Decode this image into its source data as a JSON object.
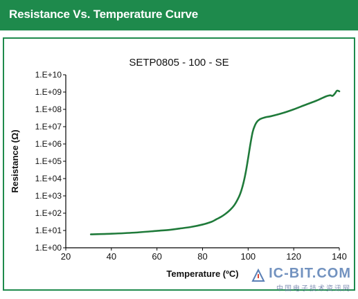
{
  "header": {
    "title": "Resistance Vs. Temperature Curve"
  },
  "colors": {
    "header_bg": "#1e8a4c",
    "line": "#1f7a3a",
    "axis": "#000000",
    "grid": "#d9d9d9"
  },
  "chart_data": {
    "type": "line",
    "title": "SETP0805 - 100 - SE",
    "xlabel": "Temperature (ºC)",
    "ylabel": "Resistance (Ω)",
    "xlim": [
      20,
      140
    ],
    "ylim_log10": [
      0,
      10
    ],
    "yscale": "log",
    "x_ticks": [
      20,
      40,
      60,
      80,
      100,
      120,
      140
    ],
    "y_tick_labels": [
      "1.E+00",
      "1.E+01",
      "1.E+02",
      "1.E+03",
      "1.E+04",
      "1.E+05",
      "1.E+06",
      "1.E+07",
      "1.E+08",
      "1.E+09",
      "1.E+10"
    ],
    "grid": false,
    "series": [
      {
        "x": [
          31,
          40,
          50,
          60,
          66,
          70,
          75,
          80,
          84,
          86,
          88,
          90,
          92,
          94,
          96,
          97,
          98,
          99,
          100,
          101,
          102,
          103,
          104,
          105,
          106,
          107,
          108,
          110,
          115,
          120,
          125,
          130,
          134,
          136,
          137,
          138,
          139,
          140
        ],
        "y": [
          6,
          6.5,
          7.5,
          9.5,
          11,
          13,
          16,
          22,
          32,
          44,
          60,
          90,
          150,
          300,
          900,
          2000,
          6000,
          25000,
          150000,
          1000000,
          5000000,
          12000000,
          20000000,
          26000000,
          30000000,
          33000000,
          36000000,
          40000000,
          60000000,
          100000000,
          180000000,
          320000000,
          550000000,
          650000000,
          600000000,
          800000000,
          1200000000,
          1100000000
        ]
      }
    ]
  },
  "watermark": {
    "main": "IC-BIT.COM",
    "sub": "中国电子技术资讯网"
  }
}
